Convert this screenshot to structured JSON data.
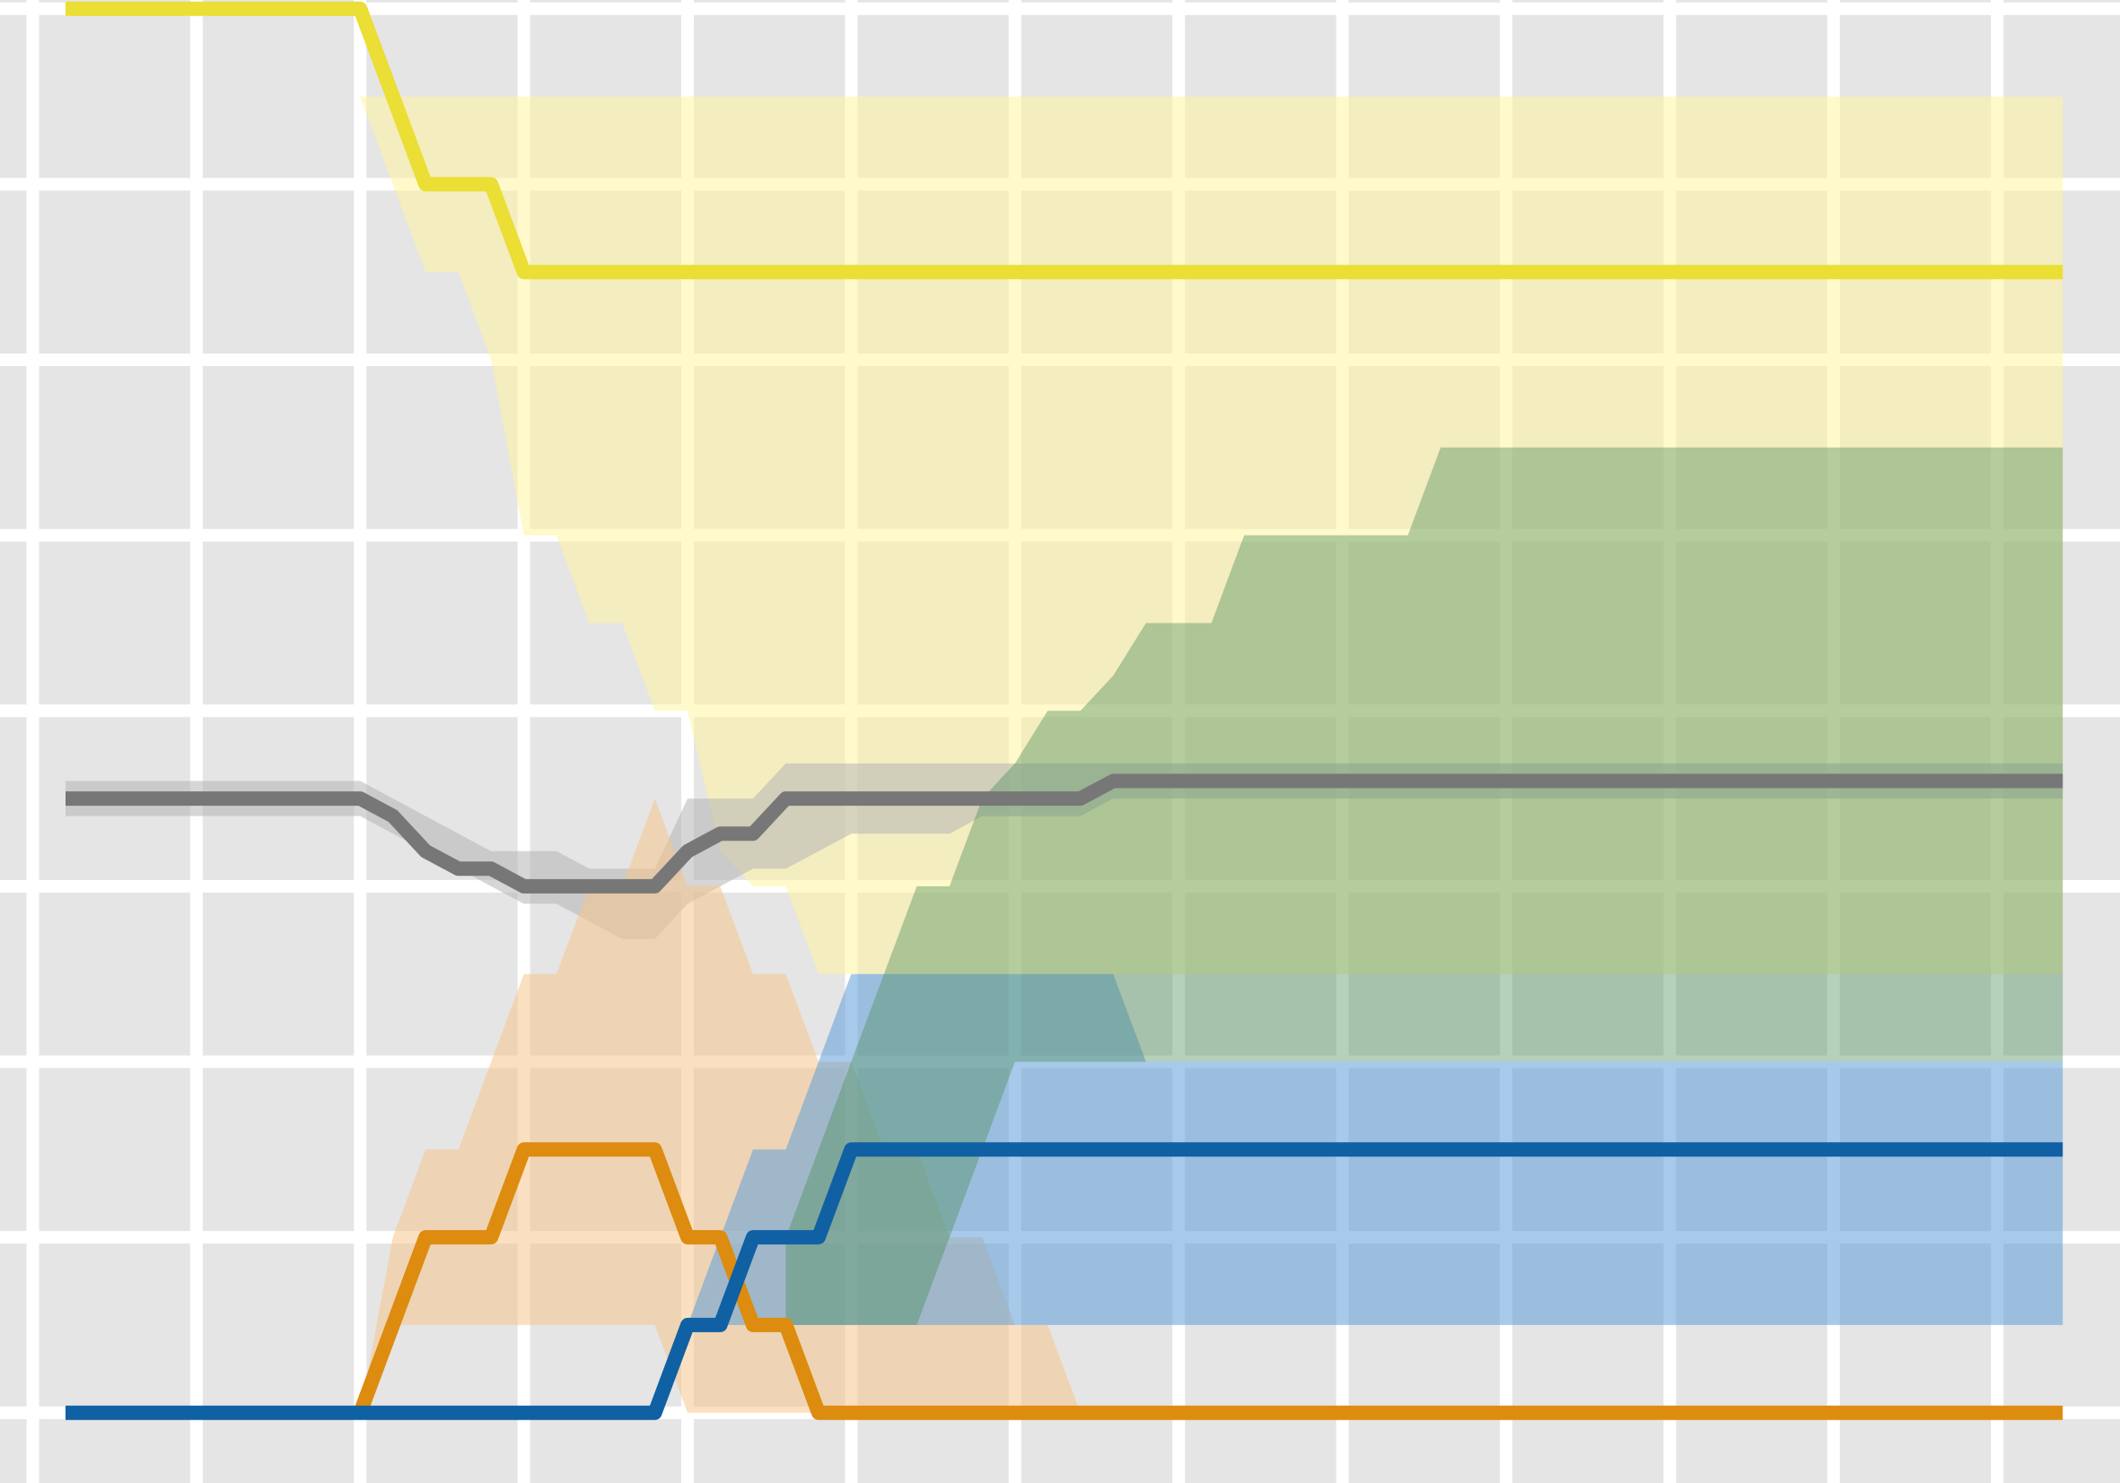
{
  "chart_data": {
    "type": "line",
    "title": "",
    "xlabel": "",
    "ylabel": "",
    "xlim": [
      -0.2,
      12.75
    ],
    "ylim": [
      -0.4,
      8.05
    ],
    "grid": true,
    "legend": "none",
    "x_grid": [
      0,
      1,
      2,
      3,
      4,
      5,
      6,
      7,
      8,
      9,
      10,
      11,
      12
    ],
    "y_grid": [
      0,
      1,
      2,
      3,
      4,
      5,
      6,
      7,
      8
    ],
    "colors": {
      "background": "#e5e5e5",
      "grid": "#ffffff",
      "yellow": "#ebde34",
      "gray": "#777777",
      "orange": "#dd8c10",
      "blue": "#1060a4",
      "green_band": "#4f8f5e"
    },
    "series": [
      {
        "color": "#ebde34",
        "band_color": "#fff4a0",
        "x": [
          0.2,
          2.0,
          2.4,
          2.8,
          3.0,
          12.4
        ],
        "y": [
          8.0,
          8.0,
          7.0,
          7.0,
          6.5,
          6.5
        ],
        "band_x": [
          2.0,
          2.2,
          2.4,
          2.6,
          2.8,
          3.0,
          3.2,
          3.4,
          3.6,
          3.8,
          4.0,
          4.2,
          4.4,
          4.6,
          4.8,
          5.0,
          5.2,
          12.4
        ],
        "band_upper": [
          7.5,
          7.5,
          7.5,
          7.5,
          7.5,
          7.5,
          7.5,
          7.5,
          7.5,
          7.5,
          7.5,
          7.5,
          7.5,
          7.5,
          7.5,
          7.5,
          7.5,
          7.5
        ],
        "band_lower": [
          7.5,
          7.0,
          6.5,
          6.5,
          6.0,
          5.0,
          5.0,
          4.5,
          4.5,
          4.0,
          4.0,
          3.2,
          3.0,
          3.0,
          2.5,
          2.5,
          2.5,
          2.5
        ]
      },
      {
        "color": "#777777",
        "band_color": "#b4b4b4",
        "x": [
          0.2,
          2.0,
          2.2,
          2.4,
          2.6,
          2.8,
          3.0,
          3.8,
          4.0,
          4.2,
          4.4,
          4.6,
          5.0,
          6.4,
          6.6,
          12.4
        ],
        "y": [
          3.5,
          3.5,
          3.4,
          3.2,
          3.1,
          3.1,
          3.0,
          3.0,
          3.2,
          3.3,
          3.3,
          3.5,
          3.5,
          3.5,
          3.6,
          3.6
        ],
        "band_x": [
          0.2,
          2.0,
          2.4,
          2.6,
          2.8,
          3.0,
          3.2,
          3.4,
          3.6,
          3.8,
          4.0,
          4.2,
          4.4,
          4.6,
          4.8,
          5.0,
          5.2,
          5.4,
          5.6,
          5.8,
          6.0,
          6.2,
          6.4,
          6.6,
          6.8,
          12.4
        ],
        "band_upper": [
          3.6,
          3.6,
          3.4,
          3.3,
          3.2,
          3.2,
          3.2,
          3.1,
          3.1,
          3.1,
          3.5,
          3.5,
          3.5,
          3.7,
          3.7,
          3.7,
          3.7,
          3.7,
          3.7,
          3.7,
          3.7,
          3.7,
          3.7,
          3.7,
          3.7,
          3.7
        ],
        "band_lower": [
          3.4,
          3.4,
          3.2,
          3.1,
          3.0,
          2.9,
          2.9,
          2.8,
          2.7,
          2.7,
          2.9,
          3.0,
          3.1,
          3.1,
          3.2,
          3.3,
          3.3,
          3.3,
          3.3,
          3.4,
          3.4,
          3.4,
          3.4,
          3.5,
          3.5,
          3.5
        ]
      },
      {
        "color": "#dd8c10",
        "band_color": "#f5c78c",
        "x": [
          2.0,
          2.4,
          2.8,
          3.0,
          3.8,
          4.0,
          4.2,
          4.4,
          4.6,
          4.8,
          5.0,
          12.4
        ],
        "y": [
          0.0,
          1.0,
          1.0,
          1.5,
          1.5,
          1.0,
          1.0,
          0.5,
          0.5,
          0.0,
          0.0,
          0.0
        ],
        "band_x": [
          2.0,
          2.2,
          2.4,
          2.6,
          2.8,
          3.0,
          3.2,
          3.4,
          3.6,
          3.8,
          4.0,
          4.2,
          4.4,
          4.6,
          4.8,
          5.0,
          5.2,
          5.4,
          5.6,
          5.8,
          6.0,
          6.2,
          6.4
        ],
        "band_upper": [
          0.0,
          1.0,
          1.5,
          1.5,
          2.0,
          2.5,
          2.5,
          3.0,
          3.0,
          3.5,
          3.0,
          3.0,
          2.5,
          2.5,
          2.0,
          2.0,
          1.5,
          1.5,
          1.0,
          1.0,
          0.5,
          0.5,
          0.0
        ],
        "band_lower": [
          0.0,
          0.5,
          0.5,
          0.5,
          0.5,
          0.5,
          0.5,
          0.5,
          0.5,
          0.5,
          0.0,
          0.0,
          0.0,
          0.0,
          0.0,
          0.0,
          0.0,
          0.0,
          0.0,
          0.0,
          0.0,
          0.0,
          0.0
        ]
      },
      {
        "color": "#1060a4",
        "band_color": "#5f9ed8",
        "x": [
          0.2,
          2.0,
          3.0,
          3.8,
          4.0,
          4.2,
          4.4,
          4.6,
          4.8,
          5.0,
          12.4
        ],
        "y": [
          0.0,
          0.0,
          0.0,
          0.0,
          0.5,
          0.5,
          1.0,
          1.0,
          1.0,
          1.5,
          1.5
        ],
        "band_x": [
          4.0,
          4.2,
          4.4,
          4.6,
          4.8,
          5.0,
          5.2,
          5.4,
          5.6,
          5.8,
          6.0,
          6.2,
          6.4,
          6.6,
          6.8,
          7.0,
          12.4
        ],
        "band_upper": [
          0.5,
          1.0,
          1.5,
          1.5,
          2.0,
          2.5,
          2.5,
          2.5,
          2.5,
          2.5,
          2.5,
          2.5,
          2.5,
          2.5,
          2.0,
          2.0,
          2.0
        ],
        "band_lower": [
          0.5,
          0.5,
          0.5,
          0.5,
          0.5,
          0.5,
          0.5,
          0.5,
          0.5,
          0.5,
          0.5,
          0.5,
          0.5,
          0.5,
          0.5,
          0.5,
          0.5
        ]
      }
    ],
    "bands": [
      {
        "color": "#4f8f5e",
        "x": [
          4.6,
          4.8,
          5.0,
          5.2,
          5.4,
          5.6,
          5.8,
          6.0,
          6.2,
          6.4,
          6.6,
          6.8,
          7.0,
          7.2,
          7.4,
          7.6,
          7.8,
          8.0,
          8.2,
          8.4,
          8.6,
          8.8,
          12.4
        ],
        "upper": [
          1.0,
          1.5,
          2.0,
          2.5,
          3.0,
          3.0,
          3.5,
          3.7,
          4.0,
          4.0,
          4.2,
          4.5,
          4.5,
          4.5,
          5.0,
          5.0,
          5.0,
          5.0,
          5.0,
          5.0,
          5.5,
          5.5,
          5.5
        ],
        "lower": [
          0.5,
          0.5,
          0.5,
          0.5,
          0.5,
          1.0,
          1.5,
          2.0,
          2.0,
          2.0,
          2.0,
          2.0,
          2.0,
          2.0,
          2.0,
          2.0,
          2.0,
          2.0,
          2.0,
          2.0,
          2.0,
          2.0,
          2.0
        ],
        "opacity": 0.42
      }
    ]
  }
}
